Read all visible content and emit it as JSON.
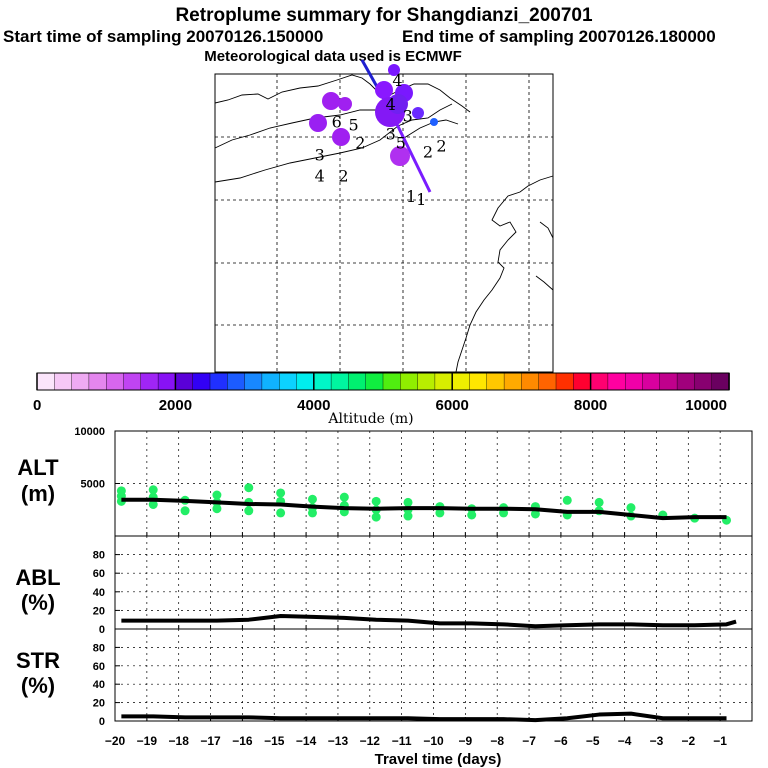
{
  "header": {
    "title": "Retroplume summary for Shangdianzi_200701",
    "start": "Start time of sampling 20070126.150000",
    "end": "End time of sampling 20070126.180000",
    "met": "Meteorological data used is ECMWF"
  },
  "colors": {
    "alt_dots": "#22ee66",
    "track": "#5a18ff",
    "track_dark": "#2020d0",
    "line": "#000000"
  },
  "colorbar": {
    "label": "Altitude (m)",
    "tick_labels": [
      "0",
      "2000",
      "4000",
      "6000",
      "8000",
      "10000"
    ],
    "ticks": [
      0,
      2000,
      4000,
      6000,
      8000,
      10000
    ],
    "range": [
      0,
      10000
    ],
    "colors": [
      "#fbe5fb",
      "#f6c8f6",
      "#eeaaf2",
      "#e486ee",
      "#d766ee",
      "#c044f2",
      "#a025f5",
      "#8812f5",
      "#5a00d8",
      "#3200f5",
      "#2030ff",
      "#1c5cff",
      "#1888ff",
      "#10b2ff",
      "#0cd2ff",
      "#00eeee",
      "#00f6c8",
      "#00f6a0",
      "#00f070",
      "#10ee40",
      "#50ee10",
      "#90ee00",
      "#b8ee00",
      "#d8ee00",
      "#eeee00",
      "#ffe600",
      "#ffc800",
      "#ffaa00",
      "#ff8a00",
      "#ff6400",
      "#ff3000",
      "#ff0030",
      "#ff0070",
      "#ff00a0",
      "#f000a8",
      "#d8009e",
      "#c0008c",
      "#a0007c",
      "#880070",
      "#6a0060"
    ]
  },
  "map_labels": [
    {
      "text": "4",
      "lon": 0.54,
      "lat": 0.96
    },
    {
      "text": "4",
      "lon": 0.52,
      "lat": 0.88
    },
    {
      "text": "3",
      "lon": 0.57,
      "lat": 0.84
    },
    {
      "text": "6",
      "lon": 0.36,
      "lat": 0.82
    },
    {
      "text": "5",
      "lon": 0.41,
      "lat": 0.81
    },
    {
      "text": "2",
      "lon": 0.43,
      "lat": 0.75
    },
    {
      "text": "3",
      "lon": 0.52,
      "lat": 0.78
    },
    {
      "text": "5",
      "lon": 0.55,
      "lat": 0.75
    },
    {
      "text": "3",
      "lon": 0.31,
      "lat": 0.71
    },
    {
      "text": "4",
      "lon": 0.31,
      "lat": 0.64
    },
    {
      "text": "2",
      "lon": 0.38,
      "lat": 0.64
    },
    {
      "text": "2",
      "lon": 0.63,
      "lat": 0.72
    },
    {
      "text": "2",
      "lon": 0.67,
      "lat": 0.74
    },
    {
      "text": "1",
      "lon": 0.58,
      "lat": 0.57
    },
    {
      "text": "1",
      "lon": 0.61,
      "lat": 0.56
    }
  ],
  "panels": {
    "alt": {
      "label": "ALT",
      "unit": "(m)",
      "ylim": [
        0,
        10000
      ],
      "ticks": [
        5000,
        10000
      ],
      "tick_labels": [
        "5000",
        "10000"
      ]
    },
    "abl": {
      "label": "ABL",
      "unit": "(%)",
      "ylim": [
        0,
        100
      ],
      "ticks": [
        0,
        20,
        40,
        60,
        80
      ],
      "tick_labels": [
        "0",
        "20",
        "40",
        "60",
        "80"
      ]
    },
    "str": {
      "label": "STR",
      "unit": "(%)",
      "ylim": [
        0,
        100
      ],
      "ticks": [
        0,
        20,
        40,
        60,
        80
      ],
      "tick_labels": [
        "0",
        "20",
        "40",
        "60",
        "80"
      ]
    }
  },
  "chart_data": [
    {
      "type": "scatter",
      "title": "ALT",
      "xlabel": "Travel time (days)",
      "ylabel": "ALT (m)",
      "xlim": [
        -20,
        0
      ],
      "ylim": [
        0,
        10000
      ],
      "x": [
        -19.8,
        -19.8,
        -19.8,
        -18.8,
        -18.8,
        -18.8,
        -17.8,
        -17.8,
        -16.8,
        -16.8,
        -16.8,
        -15.8,
        -15.8,
        -15.8,
        -14.8,
        -14.8,
        -14.8,
        -13.8,
        -13.8,
        -13.8,
        -12.8,
        -12.8,
        -12.8,
        -11.8,
        -11.8,
        -11.8,
        -10.8,
        -10.8,
        -10.8,
        -9.8,
        -9.8,
        -8.8,
        -8.8,
        -7.8,
        -7.8,
        -6.8,
        -6.8,
        -5.8,
        -5.8,
        -4.8,
        -4.8,
        -3.8,
        -3.8,
        -2.8,
        -1.8,
        -0.8
      ],
      "y": [
        3300,
        3800,
        4300,
        3000,
        3700,
        4400,
        2400,
        3400,
        2600,
        3200,
        3900,
        2400,
        3200,
        4600,
        2200,
        3300,
        4100,
        2200,
        2700,
        3500,
        2300,
        2900,
        3700,
        1800,
        2500,
        3300,
        1900,
        2500,
        3200,
        2200,
        2800,
        2000,
        2600,
        2200,
        2700,
        2100,
        2800,
        2000,
        3400,
        2400,
        3200,
        1900,
        2700,
        2000,
        1700,
        1500
      ],
      "line": {
        "x": [
          -19.8,
          -18.8,
          -17.8,
          -16.8,
          -15.8,
          -14.8,
          -13.8,
          -12.8,
          -11.8,
          -10.8,
          -9.8,
          -8.8,
          -7.8,
          -6.8,
          -5.8,
          -4.8,
          -3.8,
          -2.8,
          -1.8,
          -0.8
        ],
        "y": [
          3450,
          3450,
          3350,
          3200,
          3050,
          3000,
          2800,
          2650,
          2600,
          2650,
          2650,
          2600,
          2600,
          2550,
          2300,
          2300,
          2000,
          1700,
          1800,
          1800
        ]
      }
    },
    {
      "type": "line",
      "title": "ABL",
      "ylabel": "ABL (%)",
      "xlim": [
        -20,
        0
      ],
      "ylim": [
        0,
        100
      ],
      "x": [
        -19.8,
        -18.8,
        -17.8,
        -16.8,
        -15.8,
        -14.8,
        -13.8,
        -12.8,
        -11.8,
        -10.8,
        -9.8,
        -8.8,
        -7.8,
        -6.8,
        -5.8,
        -4.8,
        -3.8,
        -2.8,
        -1.8,
        -0.8,
        -0.5
      ],
      "values": [
        9,
        9,
        9,
        9,
        10,
        14,
        13,
        12,
        10,
        9,
        6,
        6,
        5,
        3,
        4,
        5,
        5,
        4,
        4,
        5,
        8
      ]
    },
    {
      "type": "line",
      "title": "STR",
      "ylabel": "STR (%)",
      "xlim": [
        -20,
        0
      ],
      "ylim": [
        0,
        100
      ],
      "x": [
        -19.8,
        -18.8,
        -17.8,
        -16.8,
        -15.8,
        -14.8,
        -13.8,
        -12.8,
        -11.8,
        -10.8,
        -9.8,
        -8.8,
        -7.8,
        -6.8,
        -5.8,
        -4.8,
        -3.8,
        -2.8,
        -1.8,
        -0.8
      ],
      "values": [
        5,
        5,
        4,
        4,
        4,
        3,
        3,
        3,
        3,
        3,
        2,
        2,
        2,
        1,
        3,
        7,
        8,
        3,
        3,
        3
      ]
    }
  ],
  "x_axis": {
    "label": "Travel time (days)",
    "ticks": [
      -20,
      -19,
      -18,
      -17,
      -16,
      -15,
      -14,
      -13,
      -12,
      -11,
      -10,
      -9,
      -8,
      -7,
      -6,
      -5,
      -4,
      -3,
      -2,
      -1
    ],
    "tick_labels": [
      "−20",
      "−19",
      "−18",
      "−17",
      "−16",
      "−15",
      "−14",
      "−13",
      "−12",
      "−11",
      "−10",
      "−9",
      "−8",
      "−7",
      "−6",
      "−5",
      "−4",
      "−3",
      "−2",
      "−1"
    ]
  }
}
